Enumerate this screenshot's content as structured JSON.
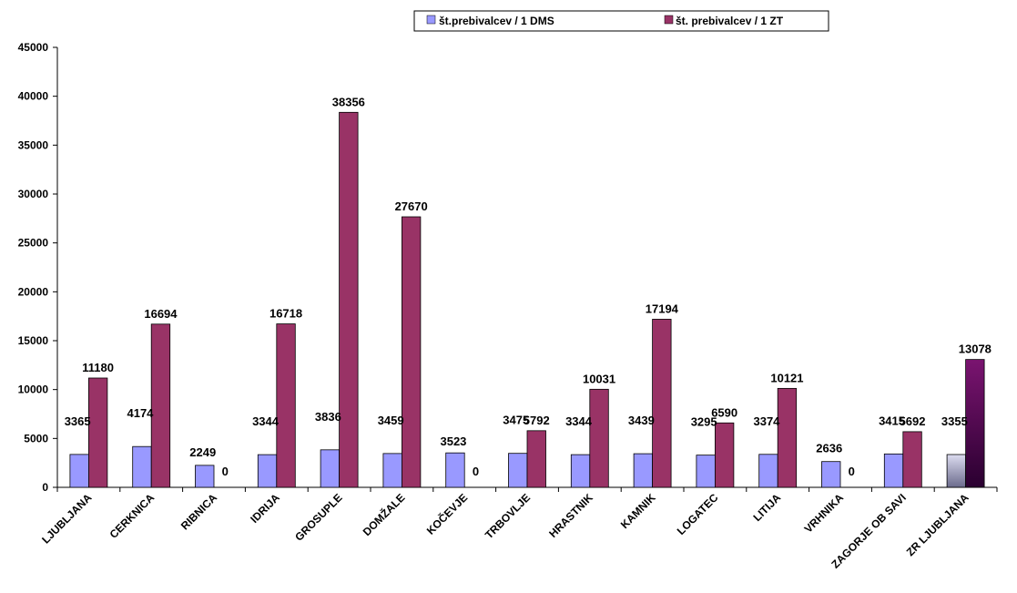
{
  "chart_data": {
    "type": "bar",
    "title": "",
    "xlabel": "",
    "ylabel": "",
    "ylim": [
      0,
      45000
    ],
    "yticks": [
      0,
      5000,
      10000,
      15000,
      20000,
      25000,
      30000,
      35000,
      40000,
      45000
    ],
    "grid": false,
    "legend_position": "top",
    "categories": [
      "LJUBLJANA",
      "CERKNICA",
      "RIBNICA",
      "IDRIJA",
      "GROSUPLE",
      "DOMŽALE",
      "KOČEVJE",
      "TRBOVLJE",
      "HRASTNIK",
      "KAMNIK",
      "LOGATEC",
      "LITIJA",
      "VRHNIKA",
      "ZAGORJE OB SAVI",
      "ZR LJUBLJANA"
    ],
    "series": [
      {
        "name": "št.prebivalcev / 1 DMS",
        "color": "#9999ff",
        "values": [
          3365,
          4174,
          2249,
          3344,
          3836,
          3459,
          3523,
          3475,
          3344,
          3439,
          3295,
          3374,
          2636,
          3415,
          3355
        ]
      },
      {
        "name": "št. prebivalcev  / 1  ZT",
        "color": "#993366",
        "values": [
          11180,
          16694,
          0,
          16718,
          38356,
          27670,
          0,
          5792,
          10031,
          17194,
          6590,
          10121,
          0,
          5692,
          13078
        ]
      }
    ],
    "special_bar_gradients": {
      "series_0_last": [
        "#dcdcf0",
        "#6b6b8c"
      ],
      "series_1_last": [
        "#7a1470",
        "#2a0030"
      ]
    }
  }
}
